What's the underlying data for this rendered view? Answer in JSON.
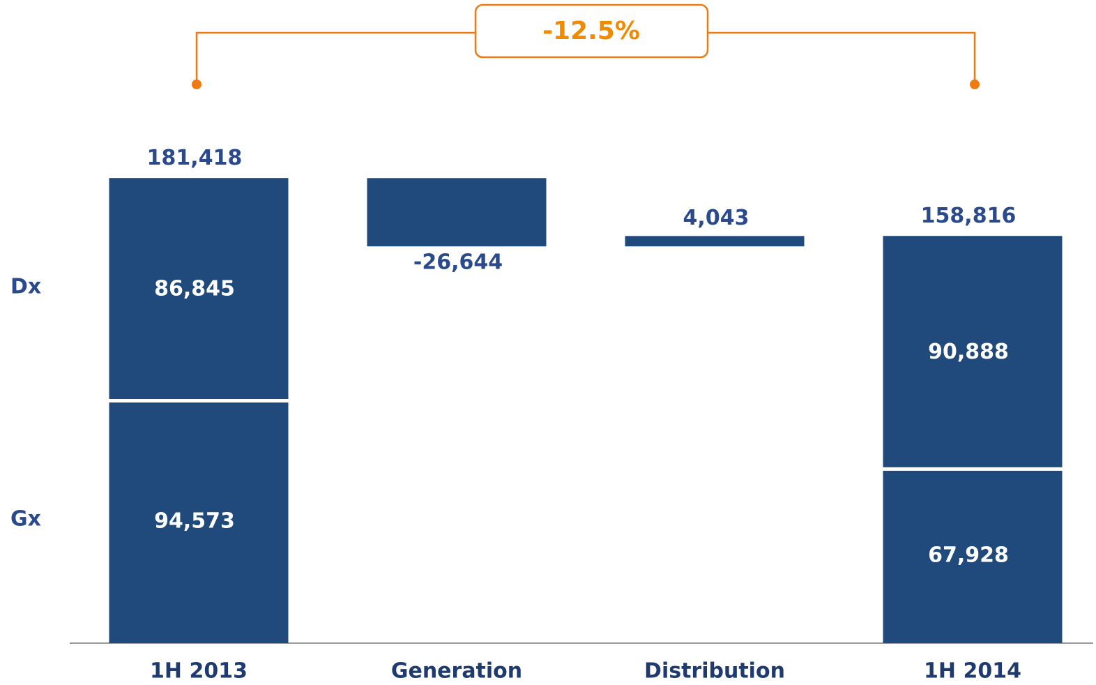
{
  "chart_data": {
    "type": "waterfall",
    "annotation": "-12.5%",
    "categories": [
      "1H 2013",
      "Generation",
      "Distribution",
      "1H 2014"
    ],
    "color": "#214a7c",
    "annotation_color": "#f08a00",
    "totals": [
      181418,
      null,
      null,
      158816
    ],
    "total_labels": [
      "181,418",
      null,
      null,
      "158,816"
    ],
    "changes": [
      null,
      -26644,
      4043,
      null
    ],
    "change_labels": [
      null,
      "-26,644",
      "4,043",
      null
    ],
    "series": [
      {
        "name": "Gx",
        "color": "#214a7c",
        "values": [
          94573,
          null,
          null,
          67928
        ],
        "value_labels": [
          "94,573",
          null,
          null,
          "67,928"
        ]
      },
      {
        "name": "Dx",
        "color": "#214a7c",
        "values": [
          86845,
          null,
          null,
          90888
        ],
        "value_labels": [
          "86,845",
          null,
          null,
          "90,888"
        ]
      }
    ],
    "ylim": [
      0,
      200000
    ]
  }
}
